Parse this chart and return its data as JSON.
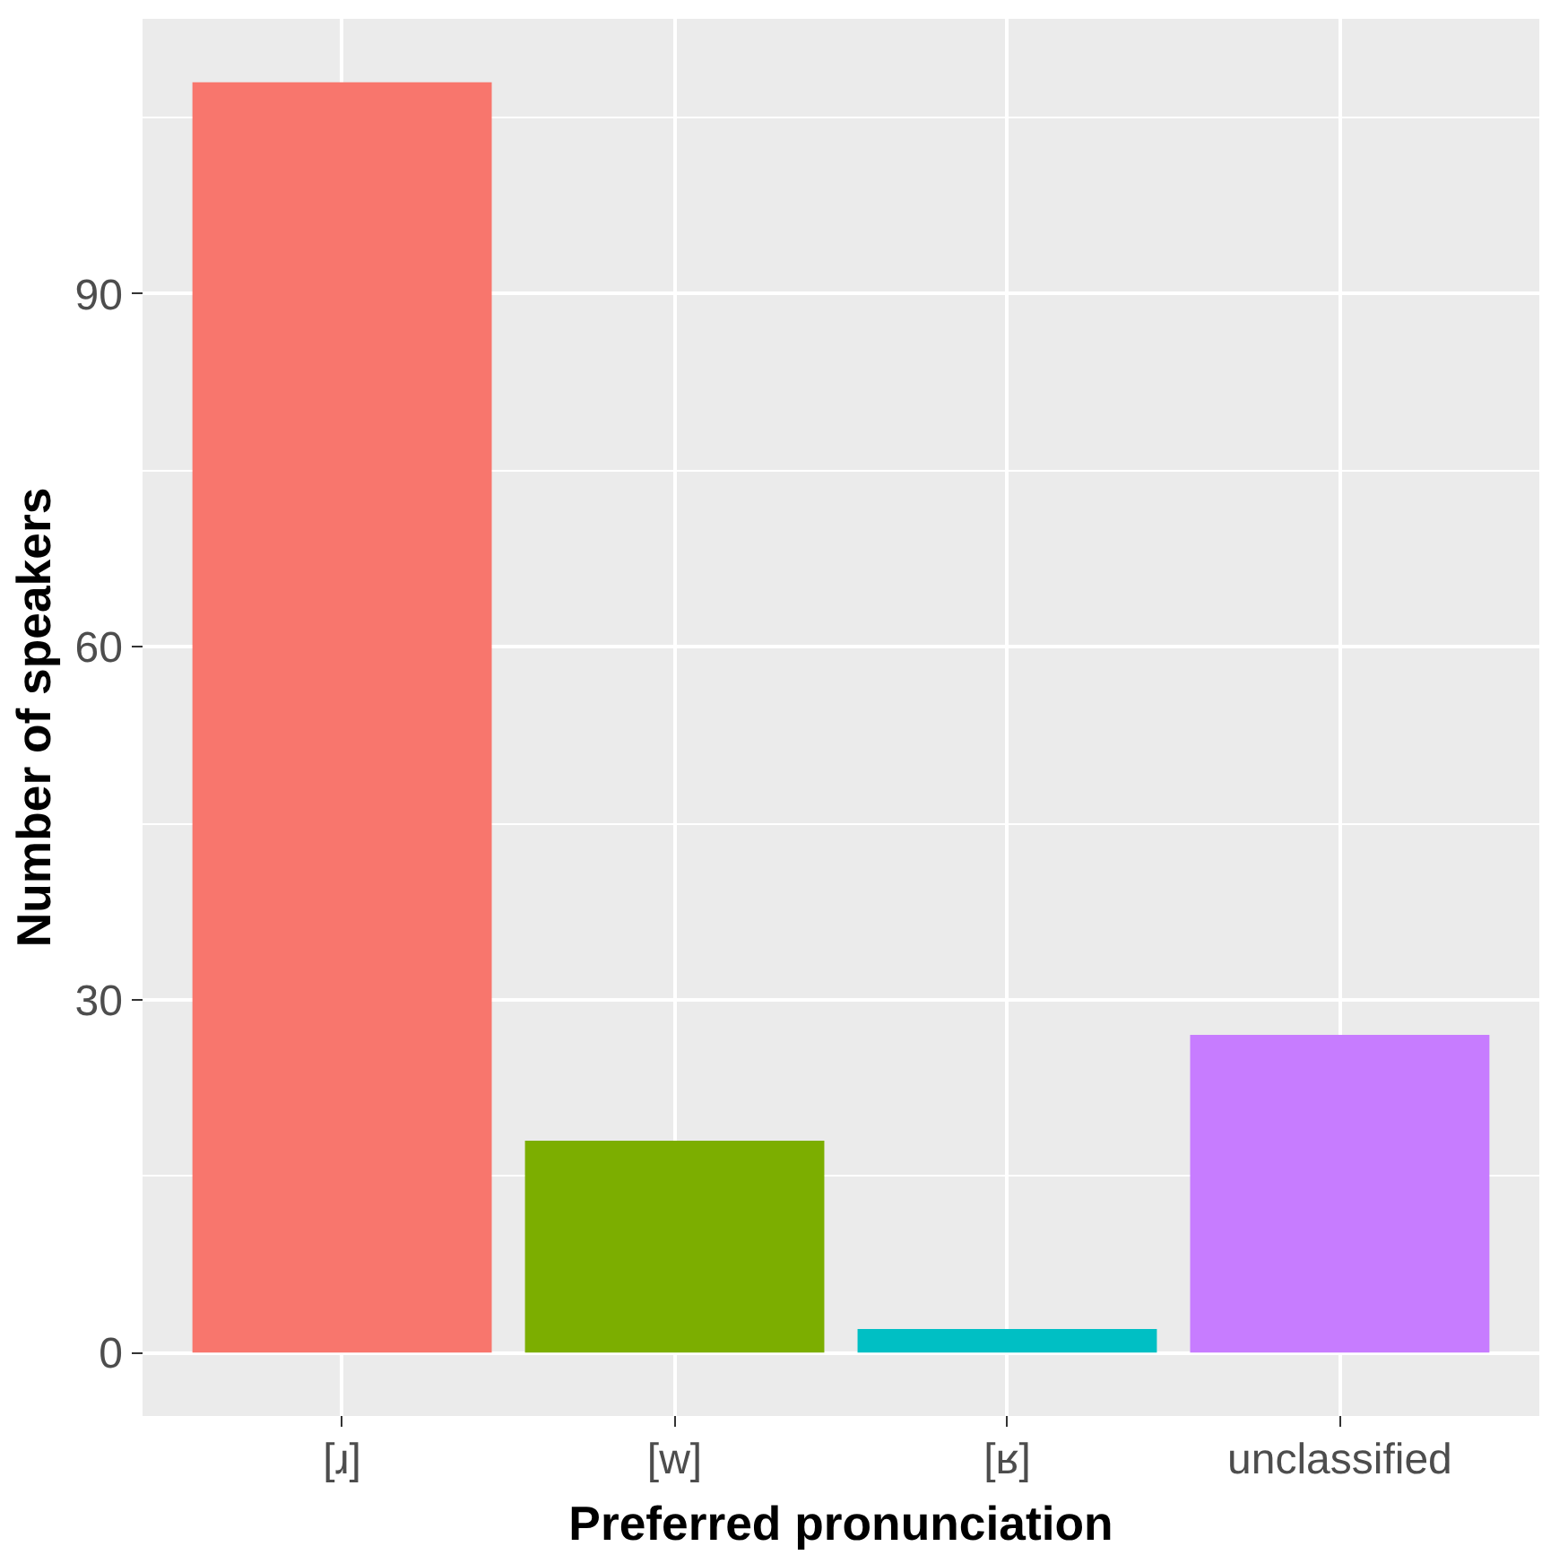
{
  "chart_data": {
    "type": "bar",
    "xlabel": "Preferred pronunciation",
    "ylabel": "Number of speakers",
    "categories": [
      "[ɹ]",
      "[w]",
      "[ʁ]",
      "unclassified"
    ],
    "values": [
      108,
      18,
      2,
      27
    ],
    "colors": [
      "#f8766d",
      "#7cae00",
      "#00bfc4",
      "#c77cff"
    ],
    "ylim": [
      -5.4,
      113.4
    ],
    "yticks": [
      0,
      30,
      60,
      90
    ],
    "grid": true
  }
}
